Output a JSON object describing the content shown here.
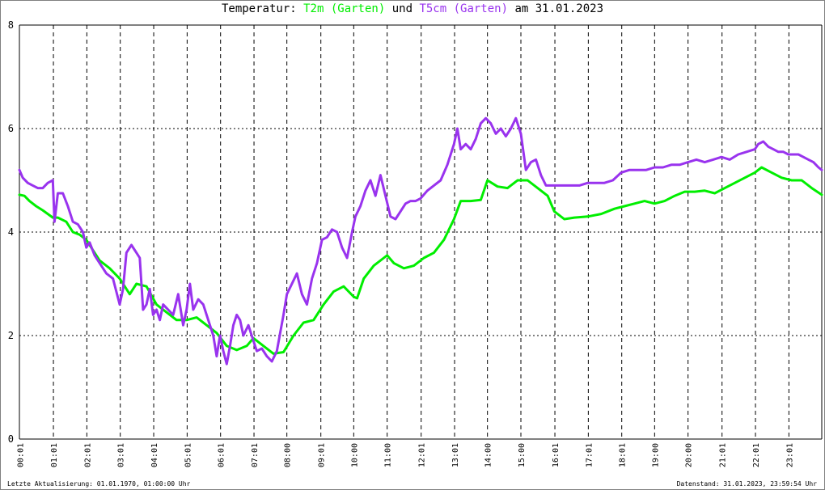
{
  "title": {
    "prefix": "Temperatur: ",
    "series1": "T2m (Garten)",
    "joiner": " und ",
    "series2": "T5cm (Garten)",
    "suffix": " am 31.01.2023"
  },
  "footer": {
    "left": "Letzte Aktualisierung: 01.01.1970, 01:00:00 Uhr",
    "right": "Datenstand: 31.01.2023, 23:59:54 Uhr"
  },
  "colors": {
    "T2m": "#00ee00",
    "T5cm": "#9933ee",
    "grid": "#000000",
    "text": "#000000"
  },
  "chart_data": {
    "type": "line",
    "xlabel": "",
    "ylabel": "",
    "ylim": [
      0,
      8
    ],
    "yticks": [
      0,
      2,
      4,
      6,
      8
    ],
    "xlim": [
      0,
      24
    ],
    "xticks": [
      "00:01",
      "01:01",
      "02:01",
      "03:01",
      "04:01",
      "05:01",
      "06:01",
      "07:01",
      "08:00",
      "09:01",
      "10:00",
      "11:00",
      "12:01",
      "13:01",
      "14:00",
      "15:00",
      "16:01",
      "17:01",
      "18:01",
      "19:00",
      "20:00",
      "21:01",
      "22:01",
      "23:01"
    ],
    "xtick_hours": [
      0.017,
      1.017,
      2.017,
      3.017,
      4.017,
      5.017,
      6.017,
      7.017,
      8.0,
      9.017,
      10.0,
      11.0,
      12.017,
      13.017,
      14.0,
      15.0,
      16.017,
      17.017,
      18.017,
      19.0,
      20.0,
      21.017,
      22.017,
      23.017
    ],
    "grid": true,
    "series": [
      {
        "name": "T2m (Garten)",
        "color": "#00ee00",
        "x": [
          0.0,
          0.15,
          0.3,
          0.5,
          0.7,
          0.85,
          1.0,
          1.15,
          1.4,
          1.6,
          1.8,
          2.0,
          2.2,
          2.4,
          2.7,
          3.0,
          3.3,
          3.5,
          3.8,
          4.1,
          4.4,
          4.7,
          5.0,
          5.3,
          5.6,
          5.9,
          6.2,
          6.5,
          6.8,
          7.0,
          7.3,
          7.6,
          7.9,
          8.2,
          8.5,
          8.8,
          9.1,
          9.4,
          9.7,
          10.0,
          10.1,
          10.3,
          10.6,
          10.9,
          11.0,
          11.2,
          11.5,
          11.8,
          12.1,
          12.4,
          12.7,
          13.0,
          13.2,
          13.5,
          13.8,
          14.0,
          14.3,
          14.6,
          14.9,
          15.2,
          15.5,
          15.8,
          16.0,
          16.3,
          16.6,
          17.0,
          17.4,
          17.8,
          18.1,
          18.4,
          18.7,
          19.0,
          19.3,
          19.6,
          19.9,
          20.2,
          20.5,
          20.8,
          21.1,
          21.4,
          21.7,
          22.0,
          22.2,
          22.5,
          22.8,
          23.1,
          23.4,
          23.7,
          24.0
        ],
        "values": [
          4.72,
          4.7,
          4.6,
          4.5,
          4.42,
          4.35,
          4.28,
          4.28,
          4.2,
          4.0,
          3.95,
          3.85,
          3.65,
          3.45,
          3.3,
          3.1,
          2.8,
          3.0,
          2.95,
          2.6,
          2.45,
          2.3,
          2.3,
          2.35,
          2.2,
          2.05,
          1.8,
          1.72,
          1.8,
          1.95,
          1.8,
          1.65,
          1.68,
          2.0,
          2.25,
          2.3,
          2.6,
          2.85,
          2.95,
          2.75,
          2.72,
          3.1,
          3.35,
          3.5,
          3.55,
          3.4,
          3.3,
          3.35,
          3.5,
          3.6,
          3.85,
          4.25,
          4.6,
          4.6,
          4.62,
          5.0,
          4.88,
          4.85,
          5.0,
          5.0,
          4.85,
          4.7,
          4.4,
          4.25,
          4.28,
          4.3,
          4.35,
          4.45,
          4.5,
          4.55,
          4.6,
          4.55,
          4.6,
          4.7,
          4.78,
          4.78,
          4.8,
          4.75,
          4.85,
          4.95,
          5.05,
          5.15,
          5.25,
          5.15,
          5.05,
          5.0,
          5.0,
          4.85,
          4.72
        ]
      },
      {
        "name": "T5cm (Garten)",
        "color": "#9933ee",
        "x": [
          0.0,
          0.1,
          0.25,
          0.4,
          0.55,
          0.7,
          0.85,
          1.0,
          1.05,
          1.15,
          1.3,
          1.45,
          1.6,
          1.75,
          1.9,
          2.0,
          2.1,
          2.25,
          2.4,
          2.6,
          2.8,
          3.0,
          3.1,
          3.2,
          3.35,
          3.5,
          3.6,
          3.7,
          3.8,
          3.9,
          4.0,
          4.1,
          4.2,
          4.3,
          4.45,
          4.6,
          4.75,
          4.9,
          5.0,
          5.1,
          5.2,
          5.35,
          5.5,
          5.65,
          5.8,
          5.9,
          6.0,
          6.1,
          6.2,
          6.3,
          6.4,
          6.5,
          6.6,
          6.7,
          6.85,
          7.0,
          7.1,
          7.25,
          7.4,
          7.55,
          7.7,
          7.9,
          8.0,
          8.15,
          8.3,
          8.45,
          8.6,
          8.75,
          8.9,
          9.05,
          9.2,
          9.35,
          9.5,
          9.65,
          9.8,
          9.95,
          10.05,
          10.2,
          10.35,
          10.5,
          10.65,
          10.8,
          10.95,
          11.1,
          11.25,
          11.4,
          11.55,
          11.7,
          11.85,
          12.0,
          12.2,
          12.4,
          12.6,
          12.8,
          13.0,
          13.1,
          13.2,
          13.35,
          13.5,
          13.65,
          13.8,
          13.95,
          14.1,
          14.25,
          14.4,
          14.55,
          14.7,
          14.85,
          15.0,
          15.15,
          15.3,
          15.45,
          15.6,
          15.75,
          16.0,
          16.25,
          16.5,
          16.75,
          17.0,
          17.25,
          17.5,
          17.75,
          18.0,
          18.25,
          18.5,
          18.75,
          19.0,
          19.25,
          19.5,
          19.75,
          20.0,
          20.25,
          20.5,
          20.75,
          21.0,
          21.25,
          21.5,
          21.75,
          22.0,
          22.1,
          22.25,
          22.4,
          22.55,
          22.7,
          22.85,
          23.0,
          23.15,
          23.3,
          23.45,
          23.6,
          23.75,
          23.9,
          24.0
        ],
        "values": [
          5.2,
          5.05,
          4.95,
          4.9,
          4.85,
          4.85,
          4.95,
          5.0,
          4.2,
          4.75,
          4.75,
          4.5,
          4.2,
          4.15,
          4.0,
          3.7,
          3.8,
          3.55,
          3.4,
          3.2,
          3.1,
          2.6,
          2.9,
          3.6,
          3.75,
          3.6,
          3.5,
          2.5,
          2.6,
          2.9,
          2.4,
          2.5,
          2.3,
          2.6,
          2.5,
          2.4,
          2.8,
          2.2,
          2.5,
          3.0,
          2.5,
          2.7,
          2.6,
          2.3,
          2.0,
          1.6,
          2.0,
          1.7,
          1.45,
          1.8,
          2.2,
          2.4,
          2.3,
          2.0,
          2.2,
          1.9,
          1.7,
          1.75,
          1.6,
          1.5,
          1.7,
          2.4,
          2.8,
          3.0,
          3.2,
          2.8,
          2.6,
          3.1,
          3.4,
          3.85,
          3.9,
          4.05,
          4.0,
          3.7,
          3.5,
          4.0,
          4.3,
          4.5,
          4.8,
          5.0,
          4.7,
          5.1,
          4.7,
          4.3,
          4.25,
          4.4,
          4.55,
          4.6,
          4.6,
          4.65,
          4.8,
          4.9,
          5.0,
          5.3,
          5.7,
          6.0,
          5.6,
          5.7,
          5.6,
          5.8,
          6.1,
          6.2,
          6.1,
          5.9,
          6.0,
          5.85,
          6.0,
          6.2,
          5.9,
          5.2,
          5.35,
          5.4,
          5.1,
          4.9,
          4.9,
          4.9,
          4.9,
          4.9,
          4.95,
          4.95,
          4.95,
          5.0,
          5.15,
          5.2,
          5.2,
          5.2,
          5.25,
          5.25,
          5.3,
          5.3,
          5.35,
          5.4,
          5.35,
          5.4,
          5.45,
          5.4,
          5.5,
          5.55,
          5.6,
          5.7,
          5.75,
          5.65,
          5.6,
          5.55,
          5.55,
          5.5,
          5.5,
          5.5,
          5.45,
          5.4,
          5.35,
          5.25,
          5.2
        ]
      }
    ]
  }
}
